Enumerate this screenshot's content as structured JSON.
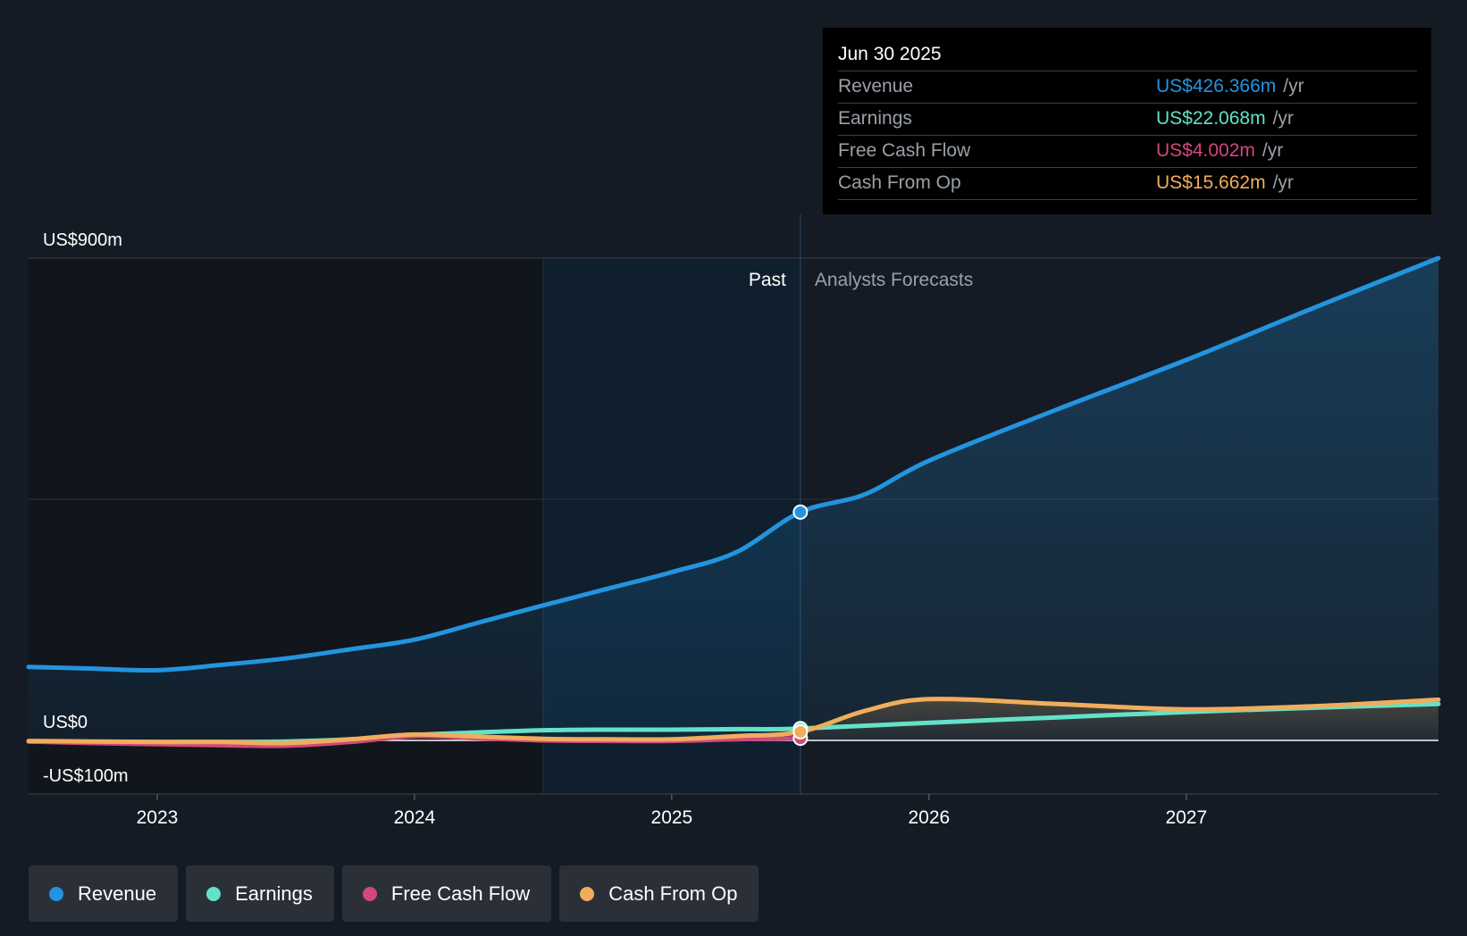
{
  "colors": {
    "revenue": "#2394df",
    "earnings": "#63e2c9",
    "free_cash_flow": "#d1477e",
    "cash_from_op": "#f0ad5c",
    "background": "#151b24"
  },
  "tooltip": {
    "date": "Jun 30 2025",
    "rows": [
      {
        "label": "Revenue",
        "value": "US$426.366m",
        "unit": "/yr"
      },
      {
        "label": "Earnings",
        "value": "US$22.068m",
        "unit": "/yr"
      },
      {
        "label": "Free Cash Flow",
        "value": "US$4.002m",
        "unit": "/yr"
      },
      {
        "label": "Cash From Op",
        "value": "US$15.662m",
        "unit": "/yr"
      }
    ]
  },
  "legend": [
    {
      "label": "Revenue",
      "color": "#2394df"
    },
    {
      "label": "Earnings",
      "color": "#63e2c9"
    },
    {
      "label": "Free Cash Flow",
      "color": "#d1477e"
    },
    {
      "label": "Cash From Op",
      "color": "#f0ad5c"
    }
  ],
  "chart_data": {
    "type": "line",
    "title": "",
    "xlabel": "",
    "ylabel": "",
    "y_tick_labels": [
      {
        "value": 900,
        "label": "US$900m"
      },
      {
        "value": 0,
        "label": "US$0"
      },
      {
        "value": -100,
        "label": "-US$100m"
      }
    ],
    "x_tick_labels": [
      "2023",
      "2024",
      "2025",
      "2026",
      "2027"
    ],
    "xlim": [
      2022.5,
      2027.98
    ],
    "ylim": [
      -100,
      900
    ],
    "grid": true,
    "past_label": "Past",
    "forecast_label": "Analysts Forecasts",
    "past_end": 2025.5,
    "highlight_start": 2024.5,
    "series": [
      {
        "name": "Revenue",
        "points": [
          [
            2022.5,
            137
          ],
          [
            2022.75,
            134
          ],
          [
            2023.0,
            131
          ],
          [
            2023.25,
            141
          ],
          [
            2023.5,
            153
          ],
          [
            2023.75,
            170
          ],
          [
            2024.0,
            188
          ],
          [
            2024.25,
            220
          ],
          [
            2024.5,
            252
          ],
          [
            2024.75,
            283
          ],
          [
            2025.0,
            314
          ],
          [
            2025.25,
            351
          ],
          [
            2025.5,
            426
          ],
          [
            2025.75,
            459
          ],
          [
            2026.0,
            522
          ],
          [
            2026.5,
            618
          ],
          [
            2027.0,
            710
          ],
          [
            2027.5,
            808
          ],
          [
            2027.98,
            900
          ]
        ]
      },
      {
        "name": "Earnings",
        "points": [
          [
            2022.5,
            -2
          ],
          [
            2022.75,
            -3
          ],
          [
            2023.0,
            -4
          ],
          [
            2023.25,
            -4
          ],
          [
            2023.5,
            -2
          ],
          [
            2023.75,
            2
          ],
          [
            2024.0,
            10
          ],
          [
            2024.25,
            15
          ],
          [
            2024.5,
            19
          ],
          [
            2024.75,
            20
          ],
          [
            2025.0,
            20
          ],
          [
            2025.25,
            21
          ],
          [
            2025.5,
            22
          ],
          [
            2026.0,
            33
          ],
          [
            2026.5,
            43
          ],
          [
            2027.0,
            53
          ],
          [
            2027.5,
            61
          ],
          [
            2027.98,
            68
          ]
        ]
      },
      {
        "name": "Free Cash Flow",
        "points": [
          [
            2022.5,
            -2
          ],
          [
            2022.75,
            -5
          ],
          [
            2023.0,
            -7
          ],
          [
            2023.25,
            -9
          ],
          [
            2023.5,
            -10
          ],
          [
            2023.75,
            -3
          ],
          [
            2024.0,
            8
          ],
          [
            2024.25,
            4
          ],
          [
            2024.5,
            0
          ],
          [
            2024.75,
            -1
          ],
          [
            2025.0,
            -1
          ],
          [
            2025.25,
            2
          ],
          [
            2025.5,
            4
          ]
        ]
      },
      {
        "name": "Cash From Op",
        "points": [
          [
            2022.5,
            -1
          ],
          [
            2022.75,
            -2
          ],
          [
            2023.0,
            -3
          ],
          [
            2023.25,
            -3
          ],
          [
            2023.5,
            -5
          ],
          [
            2023.75,
            2
          ],
          [
            2024.0,
            11
          ],
          [
            2024.25,
            7
          ],
          [
            2024.5,
            3
          ],
          [
            2024.75,
            2
          ],
          [
            2025.0,
            2
          ],
          [
            2025.25,
            8
          ],
          [
            2025.5,
            16
          ],
          [
            2025.75,
            55
          ],
          [
            2026.0,
            77
          ],
          [
            2026.5,
            68
          ],
          [
            2027.0,
            58
          ],
          [
            2027.5,
            64
          ],
          [
            2027.98,
            76
          ]
        ]
      }
    ]
  }
}
